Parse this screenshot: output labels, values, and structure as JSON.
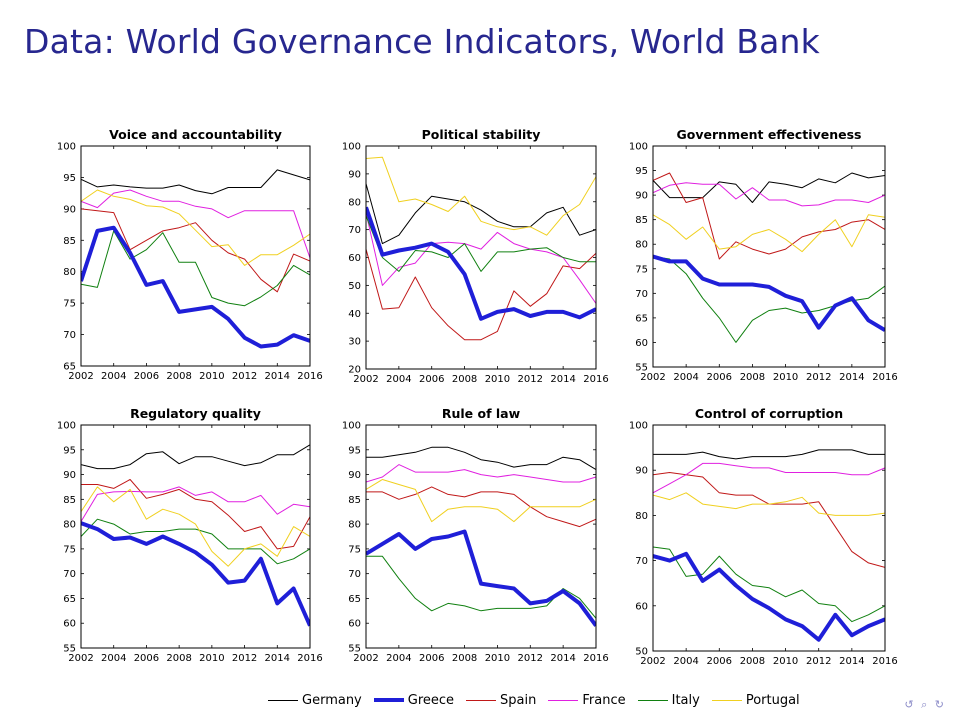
{
  "slide": {
    "title": "Data: World Governance Indicators, World Bank"
  },
  "nav": {
    "icons": [
      "undo-icon",
      "search-icon",
      "redo-icon"
    ],
    "glyphs": "↺ ⌕ ↻"
  },
  "series_style": {
    "Germany": {
      "color": "#000000",
      "width": 1
    },
    "Greece": {
      "color": "#1f1fd8",
      "width": 4
    },
    "Spain": {
      "color": "#c01818",
      "width": 1
    },
    "France": {
      "color": "#e020e0",
      "width": 1
    },
    "Italy": {
      "color": "#108010",
      "width": 1
    },
    "Portugal": {
      "color": "#f0d020",
      "width": 1
    }
  },
  "legend": [
    "Germany",
    "Greece",
    "Spain",
    "France",
    "Italy",
    "Portugal"
  ],
  "chart_data": [
    {
      "type": "line",
      "title": "Voice and accountability",
      "xlim": [
        2002,
        2016
      ],
      "ylim": [
        65,
        100
      ],
      "xticks": [
        2002,
        2004,
        2006,
        2008,
        2010,
        2012,
        2014,
        2016
      ],
      "yticks": [
        65,
        70,
        75,
        80,
        85,
        90,
        95,
        100
      ],
      "x": [
        2002,
        2003,
        2004,
        2005,
        2006,
        2007,
        2008,
        2009,
        2010,
        2011,
        2012,
        2013,
        2014,
        2015,
        2016
      ],
      "series": [
        {
          "name": "Germany",
          "values": [
            94.7,
            93.5,
            93.8,
            93.5,
            93.3,
            93.3,
            93.8,
            92.9,
            92.4,
            93.4,
            93.4,
            93.4,
            96.2,
            95.4,
            94.6
          ]
        },
        {
          "name": "Greece",
          "values": [
            78.5,
            86.5,
            87.0,
            83.0,
            77.9,
            78.5,
            73.6,
            74.0,
            74.4,
            72.5,
            69.5,
            68.1,
            68.4,
            69.9,
            69.0
          ]
        },
        {
          "name": "Spain",
          "values": [
            90.0,
            89.7,
            89.4,
            83.5,
            85.0,
            86.5,
            87.0,
            87.8,
            85.0,
            83.0,
            82.0,
            78.8,
            76.8,
            82.8,
            81.7
          ]
        },
        {
          "name": "France",
          "values": [
            91.2,
            90.2,
            92.5,
            93.0,
            92.0,
            91.2,
            91.2,
            90.4,
            90.0,
            88.6,
            89.7,
            89.7,
            89.7,
            89.7,
            82.2
          ]
        },
        {
          "name": "Italy",
          "values": [
            78.0,
            77.5,
            86.5,
            82.0,
            83.5,
            86.2,
            81.5,
            81.5,
            75.9,
            75.0,
            74.6,
            76.0,
            77.8,
            81.0,
            79.5
          ]
        },
        {
          "name": "Portugal",
          "values": [
            91.2,
            93.0,
            92.0,
            91.5,
            90.5,
            90.3,
            89.2,
            86.6,
            84.0,
            84.3,
            81.0,
            82.7,
            82.7,
            84.2,
            86.0
          ]
        }
      ]
    },
    {
      "type": "line",
      "title": "Political stability",
      "xlim": [
        2002,
        2016
      ],
      "ylim": [
        20,
        100
      ],
      "xticks": [
        2002,
        2004,
        2006,
        2008,
        2010,
        2012,
        2014,
        2016
      ],
      "yticks": [
        20,
        30,
        40,
        50,
        60,
        70,
        80,
        90,
        100
      ],
      "x": [
        2002,
        2003,
        2004,
        2005,
        2006,
        2007,
        2008,
        2009,
        2010,
        2011,
        2012,
        2013,
        2014,
        2015,
        2016
      ],
      "series": [
        {
          "name": "Germany",
          "values": [
            86.5,
            65.0,
            68.0,
            76.0,
            82.0,
            81.0,
            80.0,
            77.0,
            73.0,
            71.0,
            71.0,
            76.0,
            78.0,
            68.0,
            70.0
          ]
        },
        {
          "name": "Greece",
          "values": [
            78.0,
            61.0,
            62.5,
            63.5,
            65.0,
            62.0,
            54.0,
            38.0,
            40.5,
            41.5,
            39.0,
            40.5,
            40.5,
            38.5,
            41.5
          ]
        },
        {
          "name": "Spain",
          "values": [
            63.0,
            41.5,
            42.0,
            53.0,
            42.0,
            35.5,
            30.5,
            30.5,
            33.5,
            48.0,
            42.5,
            47.0,
            57.0,
            56.0,
            61.5
          ]
        },
        {
          "name": "France",
          "values": [
            76.0,
            50.0,
            56.5,
            58.0,
            65.0,
            65.5,
            65.0,
            63.0,
            69.0,
            65.0,
            63.0,
            62.0,
            60.0,
            52.0,
            43.5
          ]
        },
        {
          "name": "Italy",
          "values": [
            75.0,
            60.0,
            55.0,
            62.5,
            62.0,
            60.0,
            65.0,
            55.0,
            62.0,
            62.0,
            63.0,
            63.5,
            60.0,
            58.5,
            58.5
          ]
        },
        {
          "name": "Portugal",
          "values": [
            95.5,
            96.0,
            80.0,
            81.0,
            79.0,
            76.5,
            82.0,
            73.0,
            71.0,
            70.0,
            71.0,
            68.0,
            75.0,
            79.0,
            89.0
          ]
        }
      ]
    },
    {
      "type": "line",
      "title": "Government effectiveness",
      "xlim": [
        2002,
        2016
      ],
      "ylim": [
        55,
        100
      ],
      "xticks": [
        2002,
        2004,
        2006,
        2008,
        2010,
        2012,
        2014,
        2016
      ],
      "yticks": [
        55,
        60,
        65,
        70,
        75,
        80,
        85,
        90,
        95,
        100
      ],
      "x": [
        2002,
        2003,
        2004,
        2005,
        2006,
        2007,
        2008,
        2009,
        2010,
        2011,
        2012,
        2013,
        2014,
        2015,
        2016
      ],
      "series": [
        {
          "name": "Germany",
          "values": [
            93.0,
            89.5,
            89.5,
            89.5,
            92.7,
            92.2,
            88.5,
            92.7,
            92.2,
            91.5,
            93.3,
            92.5,
            94.5,
            93.5,
            94.0
          ]
        },
        {
          "name": "Greece",
          "values": [
            77.5,
            76.5,
            76.5,
            73.0,
            71.8,
            71.8,
            71.8,
            71.3,
            69.5,
            68.4,
            63.0,
            67.5,
            69.0,
            64.5,
            62.5
          ]
        },
        {
          "name": "Spain",
          "values": [
            93.0,
            94.5,
            88.5,
            89.5,
            77.0,
            80.5,
            79.0,
            78.0,
            79.0,
            81.5,
            82.5,
            83.0,
            84.5,
            85.0,
            83.0
          ]
        },
        {
          "name": "France",
          "values": [
            90.5,
            92.0,
            92.5,
            92.2,
            92.2,
            89.2,
            91.5,
            89.0,
            89.0,
            87.8,
            88.0,
            89.0,
            89.0,
            88.5,
            90.0
          ]
        },
        {
          "name": "Italy",
          "values": [
            77.5,
            77.0,
            74.0,
            69.0,
            65.0,
            60.0,
            64.5,
            66.5,
            67.0,
            66.0,
            66.5,
            67.5,
            68.5,
            69.0,
            71.5
          ]
        },
        {
          "name": "Portugal",
          "values": [
            86.0,
            84.0,
            81.0,
            83.5,
            79.0,
            79.5,
            82.0,
            83.0,
            81.0,
            78.5,
            82.0,
            85.0,
            79.5,
            86.0,
            85.5
          ]
        }
      ]
    },
    {
      "type": "line",
      "title": "Regulatory quality",
      "xlim": [
        2002,
        2016
      ],
      "ylim": [
        55,
        100
      ],
      "xticks": [
        2002,
        2004,
        2006,
        2008,
        2010,
        2012,
        2014,
        2016
      ],
      "yticks": [
        55,
        60,
        65,
        70,
        75,
        80,
        85,
        90,
        95,
        100
      ],
      "x": [
        2002,
        2003,
        2004,
        2005,
        2006,
        2007,
        2008,
        2009,
        2010,
        2011,
        2012,
        2013,
        2014,
        2015,
        2016
      ],
      "series": [
        {
          "name": "Germany",
          "values": [
            92.0,
            91.2,
            91.2,
            92.0,
            94.2,
            94.6,
            92.2,
            93.6,
            93.6,
            92.7,
            91.8,
            92.4,
            94.0,
            94.0,
            96.0
          ]
        },
        {
          "name": "Greece",
          "values": [
            80.2,
            79.0,
            77.0,
            77.3,
            76.0,
            77.5,
            76.0,
            74.3,
            71.8,
            68.2,
            68.6,
            73.0,
            64.0,
            67.0,
            59.5
          ]
        },
        {
          "name": "Spain",
          "values": [
            88.0,
            88.0,
            87.2,
            89.0,
            85.2,
            86.0,
            87.0,
            85.0,
            84.5,
            81.8,
            78.5,
            79.5,
            75.0,
            75.5,
            81.5
          ]
        },
        {
          "name": "France",
          "values": [
            80.5,
            86.0,
            86.5,
            86.6,
            86.5,
            86.5,
            87.5,
            85.8,
            86.5,
            84.5,
            84.5,
            85.8,
            82.0,
            84.0,
            83.5
          ]
        },
        {
          "name": "Italy",
          "values": [
            77.5,
            81.0,
            80.0,
            78.0,
            78.5,
            78.5,
            79.0,
            79.0,
            78.0,
            75.0,
            75.0,
            75.0,
            72.0,
            73.0,
            75.0
          ]
        },
        {
          "name": "Portugal",
          "values": [
            82.5,
            87.5,
            84.5,
            87.0,
            81.0,
            83.0,
            82.0,
            80.0,
            74.5,
            71.5,
            75.0,
            76.0,
            73.5,
            79.5,
            77.5
          ]
        }
      ]
    },
    {
      "type": "line",
      "title": "Rule of law",
      "xlim": [
        2002,
        2016
      ],
      "ylim": [
        55,
        100
      ],
      "xticks": [
        2002,
        2004,
        2006,
        2008,
        2010,
        2012,
        2014,
        2016
      ],
      "yticks": [
        55,
        60,
        65,
        70,
        75,
        80,
        85,
        90,
        95,
        100
      ],
      "x": [
        2002,
        2003,
        2004,
        2005,
        2006,
        2007,
        2008,
        2009,
        2010,
        2011,
        2012,
        2013,
        2014,
        2015,
        2016
      ],
      "series": [
        {
          "name": "Germany",
          "values": [
            93.5,
            93.5,
            94.0,
            94.5,
            95.5,
            95.5,
            94.5,
            93.0,
            92.5,
            91.5,
            92.0,
            92.0,
            93.5,
            93.0,
            91.0
          ]
        },
        {
          "name": "Greece",
          "values": [
            74.0,
            76.0,
            78.0,
            75.0,
            77.0,
            77.5,
            78.5,
            68.0,
            67.5,
            67.0,
            64.0,
            64.5,
            66.5,
            64.0,
            59.5
          ]
        },
        {
          "name": "Spain",
          "values": [
            86.5,
            86.5,
            85.0,
            86.0,
            87.5,
            86.0,
            85.5,
            86.5,
            86.5,
            86.0,
            83.5,
            81.5,
            80.5,
            79.5,
            81.0
          ]
        },
        {
          "name": "France",
          "values": [
            88.5,
            89.5,
            92.0,
            90.5,
            90.5,
            90.5,
            91.0,
            90.0,
            89.5,
            90.0,
            89.5,
            89.0,
            88.5,
            88.5,
            89.5
          ]
        },
        {
          "name": "Italy",
          "values": [
            73.5,
            73.5,
            69.0,
            65.0,
            62.5,
            64.0,
            63.5,
            62.5,
            63.0,
            63.0,
            63.0,
            63.5,
            67.0,
            65.0,
            61.0
          ]
        },
        {
          "name": "Portugal",
          "values": [
            87.0,
            89.0,
            88.0,
            87.0,
            80.5,
            83.0,
            83.5,
            83.5,
            83.0,
            80.5,
            83.5,
            83.5,
            83.5,
            83.5,
            85.0
          ]
        }
      ]
    },
    {
      "type": "line",
      "title": "Control of corruption",
      "xlim": [
        2002,
        2016
      ],
      "ylim": [
        50,
        100
      ],
      "xticks": [
        2002,
        2004,
        2006,
        2008,
        2010,
        2012,
        2014,
        2016
      ],
      "yticks": [
        50,
        60,
        70,
        80,
        90,
        100
      ],
      "x": [
        2002,
        2003,
        2004,
        2005,
        2006,
        2007,
        2008,
        2009,
        2010,
        2011,
        2012,
        2013,
        2014,
        2015,
        2016
      ],
      "series": [
        {
          "name": "Germany",
          "values": [
            93.5,
            93.5,
            93.5,
            94.0,
            93.0,
            92.5,
            93.0,
            93.0,
            93.0,
            93.5,
            94.5,
            94.5,
            94.5,
            93.5,
            93.5
          ]
        },
        {
          "name": "Greece",
          "values": [
            71.0,
            70.0,
            71.5,
            65.5,
            68.0,
            64.5,
            61.5,
            59.5,
            57.0,
            55.5,
            52.5,
            58.0,
            53.5,
            55.5,
            57.0
          ]
        },
        {
          "name": "Spain",
          "values": [
            89.0,
            89.5,
            89.0,
            88.5,
            85.0,
            84.5,
            84.5,
            82.5,
            82.5,
            82.5,
            83.0,
            77.5,
            72.0,
            69.5,
            68.5
          ]
        },
        {
          "name": "France",
          "values": [
            85.0,
            87.0,
            89.0,
            91.5,
            91.5,
            91.0,
            90.5,
            90.5,
            89.5,
            89.5,
            89.5,
            89.5,
            89.0,
            89.0,
            90.5
          ]
        },
        {
          "name": "Italy",
          "values": [
            73.0,
            72.5,
            66.5,
            67.0,
            71.0,
            67.0,
            64.5,
            64.0,
            62.0,
            63.5,
            60.5,
            60.0,
            56.5,
            58.0,
            60.0
          ]
        },
        {
          "name": "Portugal",
          "values": [
            84.5,
            83.5,
            85.0,
            82.5,
            82.0,
            81.5,
            82.5,
            82.5,
            83.0,
            84.0,
            80.5,
            80.0,
            80.0,
            80.0,
            80.5
          ]
        }
      ]
    }
  ]
}
